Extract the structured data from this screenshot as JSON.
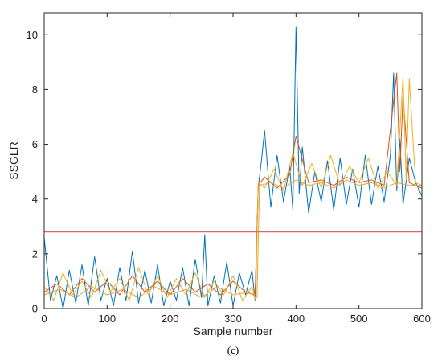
{
  "chart_data": {
    "type": "line",
    "xlabel": "Sample number",
    "ylabel": "SSGLR",
    "caption": "(c)",
    "xlim": [
      0,
      600
    ],
    "ylim": [
      0,
      10.8
    ],
    "xticks": [
      0,
      100,
      200,
      300,
      400,
      500,
      600
    ],
    "yticks": [
      0,
      2,
      4,
      6,
      8,
      10
    ],
    "grid": false,
    "threshold": 2.8,
    "change_point": 340,
    "series": [
      {
        "color": "#0072BD",
        "x": [
          0,
          10,
          20,
          30,
          40,
          50,
          60,
          70,
          80,
          90,
          100,
          110,
          120,
          130,
          140,
          150,
          160,
          170,
          180,
          190,
          200,
          210,
          220,
          230,
          240,
          250,
          255,
          260,
          270,
          280,
          290,
          300,
          310,
          320,
          330,
          335,
          340,
          345,
          350,
          360,
          370,
          380,
          390,
          395,
          400,
          405,
          410,
          420,
          430,
          440,
          450,
          460,
          470,
          480,
          490,
          500,
          510,
          520,
          530,
          540,
          550,
          555,
          560,
          565,
          570,
          580,
          590,
          600
        ],
        "y": [
          2.6,
          0.3,
          1.2,
          0.0,
          1.4,
          0.2,
          1.6,
          0.1,
          1.9,
          0.3,
          1.1,
          0.1,
          1.5,
          0.3,
          2.1,
          0.2,
          1.4,
          0.2,
          1.6,
          0.1,
          1.0,
          0.3,
          1.5,
          0.1,
          1.8,
          0.4,
          2.7,
          0.1,
          1.2,
          0.2,
          1.7,
          0.1,
          1.3,
          0.5,
          1.4,
          0.3,
          4.4,
          5.4,
          6.5,
          3.7,
          5.6,
          3.9,
          5.2,
          3.6,
          10.3,
          4.2,
          5.9,
          3.5,
          5.0,
          3.9,
          5.4,
          3.6,
          5.5,
          3.8,
          5.1,
          3.7,
          5.6,
          3.8,
          5.2,
          3.9,
          5.6,
          8.6,
          4.3,
          6.2,
          3.8,
          5.5,
          4.6,
          4.1
        ]
      },
      {
        "color": "#D95319",
        "x": [
          0,
          20,
          40,
          60,
          80,
          100,
          120,
          140,
          160,
          180,
          200,
          220,
          240,
          260,
          280,
          300,
          320,
          335,
          340,
          350,
          370,
          390,
          400,
          420,
          440,
          460,
          480,
          500,
          520,
          540,
          560,
          565,
          570,
          580,
          600
        ],
        "y": [
          0.6,
          0.9,
          0.5,
          1.1,
          0.6,
          1.0,
          0.5,
          1.2,
          0.6,
          1.0,
          0.5,
          1.1,
          0.6,
          0.9,
          0.5,
          1.0,
          0.6,
          0.5,
          4.5,
          4.8,
          4.4,
          4.9,
          6.3,
          4.6,
          4.7,
          4.5,
          4.8,
          4.6,
          4.7,
          4.5,
          8.6,
          5.0,
          7.8,
          4.6,
          4.4
        ]
      },
      {
        "color": "#EDB120",
        "x": [
          0,
          15,
          30,
          45,
          60,
          75,
          90,
          105,
          120,
          135,
          150,
          165,
          180,
          195,
          210,
          225,
          240,
          255,
          270,
          285,
          300,
          315,
          330,
          336,
          340,
          350,
          365,
          380,
          395,
          410,
          425,
          440,
          455,
          470,
          485,
          500,
          515,
          530,
          545,
          560,
          570,
          575,
          580,
          590,
          600
        ],
        "y": [
          0.8,
          0.3,
          1.3,
          0.5,
          1.0,
          0.4,
          1.4,
          0.6,
          1.1,
          0.3,
          1.5,
          0.5,
          1.2,
          0.4,
          1.1,
          0.5,
          1.3,
          0.4,
          1.0,
          0.5,
          1.2,
          0.3,
          0.8,
          0.3,
          4.6,
          4.4,
          5.1,
          4.3,
          5.7,
          4.5,
          5.3,
          4.4,
          5.6,
          4.5,
          5.2,
          4.6,
          5.5,
          4.4,
          5.0,
          4.5,
          8.5,
          4.7,
          8.4,
          4.6,
          4.5
        ]
      },
      {
        "color": "#E8A33D",
        "x": [
          0,
          25,
          50,
          75,
          100,
          125,
          150,
          175,
          200,
          225,
          250,
          275,
          300,
          325,
          338,
          342,
          360,
          380,
          400,
          420,
          440,
          460,
          480,
          500,
          520,
          540,
          560,
          580,
          600
        ],
        "y": [
          0.5,
          0.7,
          0.4,
          0.8,
          0.5,
          0.7,
          0.4,
          0.8,
          0.5,
          0.7,
          0.4,
          0.8,
          0.5,
          0.6,
          0.4,
          4.5,
          4.6,
          4.4,
          4.7,
          4.5,
          4.6,
          4.4,
          4.7,
          4.5,
          4.6,
          4.4,
          4.6,
          4.5,
          4.5
        ]
      }
    ]
  }
}
